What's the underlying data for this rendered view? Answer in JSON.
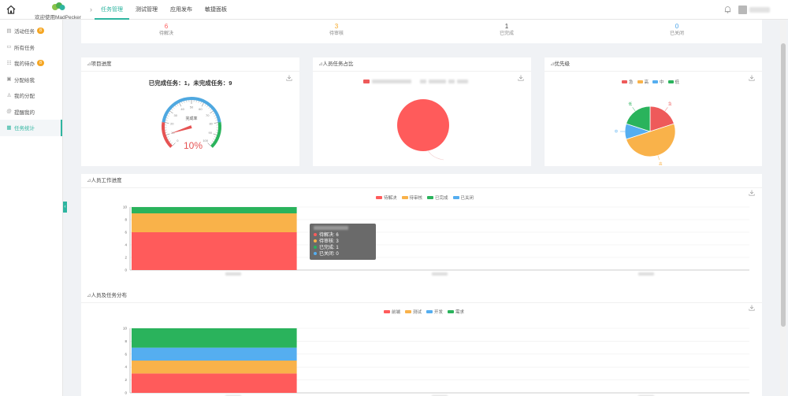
{
  "header": {
    "logo_text": "欢迎使用MadPecker",
    "tabs": [
      {
        "label": "任务管理",
        "active": true
      },
      {
        "label": "测试管理",
        "active": false
      },
      {
        "label": "应用发布",
        "active": false
      },
      {
        "label": "敏捷面板",
        "active": false
      }
    ]
  },
  "sidebar": {
    "items": [
      {
        "label": "活动任务",
        "badge": "8",
        "icon": "clipboard-icon",
        "active": false
      },
      {
        "label": "所有任务",
        "badge": "",
        "icon": "file-icon",
        "active": false
      },
      {
        "label": "我的待办",
        "badge": "8",
        "icon": "todo-icon",
        "active": false
      },
      {
        "label": "分配给我",
        "badge": "",
        "icon": "inbox-icon",
        "active": false
      },
      {
        "label": "我的分配",
        "badge": "",
        "icon": "user-icon",
        "active": false
      },
      {
        "label": "提醒我的",
        "badge": "",
        "icon": "at-icon",
        "active": false
      },
      {
        "label": "任务统计",
        "badge": "",
        "icon": "stats-icon",
        "active": true
      }
    ],
    "collapse_label": "‹"
  },
  "stats": [
    {
      "value": "6",
      "label": "待解决",
      "color": "#ff5b5b"
    },
    {
      "value": "3",
      "label": "待审核",
      "color": "#f5a623"
    },
    {
      "value": "1",
      "label": "已完成",
      "color": "#444444"
    },
    {
      "value": "0",
      "label": "已关闭",
      "color": "#4aa3e8"
    }
  ],
  "cards": {
    "progress": {
      "title": "项目进度",
      "summary": "已完成任务：1，未完成任务：9",
      "gauge_label": "完成率",
      "gauge_value": "10%",
      "gauge_percent": 10,
      "gauge_ticks": [
        "0",
        "10",
        "20",
        "30",
        "40",
        "50",
        "60",
        "70",
        "80",
        "90",
        "100"
      ]
    },
    "member_share": {
      "title": "人员任务占比"
    },
    "priority": {
      "title": "优先级",
      "legend": [
        "急",
        "高",
        "中",
        "低"
      ],
      "labels": [
        "急",
        "高",
        "中",
        "低"
      ]
    },
    "work_progress": {
      "title": "人员工作进度",
      "legend": [
        "待解决",
        "待审核",
        "已完成",
        "已关闭"
      ],
      "tooltip": [
        {
          "label": "待解决: 6"
        },
        {
          "label": "待审核: 3"
        },
        {
          "label": "已完成: 1"
        },
        {
          "label": "已关闭: 0"
        }
      ]
    },
    "distribution": {
      "title": "人员及任务分布",
      "legend": [
        "前端",
        "测试",
        "开发",
        "需求"
      ]
    }
  },
  "chart_data": [
    {
      "type": "gauge",
      "title": "项目进度",
      "label": "完成率",
      "value": 10,
      "min": 0,
      "max": 100
    },
    {
      "type": "pie",
      "title": "人员任务占比",
      "slices": [
        {
          "value": 10,
          "color": "#ff5b5b"
        }
      ]
    },
    {
      "type": "pie",
      "title": "优先级",
      "slices": [
        {
          "name": "急",
          "value": 2,
          "color": "#ee5a5a"
        },
        {
          "name": "高",
          "value": 5,
          "color": "#f9b24a"
        },
        {
          "name": "中",
          "value": 1,
          "color": "#55aef0"
        },
        {
          "name": "低",
          "value": 2,
          "color": "#2ab35c"
        }
      ]
    },
    {
      "type": "bar",
      "stacked": true,
      "title": "人员工作进度",
      "ylim": [
        0,
        10
      ],
      "yticks": [
        0,
        2,
        4,
        6,
        8,
        10
      ],
      "num_categories": 3,
      "series": [
        {
          "name": "待解决",
          "color": "#ff5b5b",
          "values": [
            6,
            0,
            0
          ]
        },
        {
          "name": "待审核",
          "color": "#f9b24a",
          "values": [
            3,
            0,
            0
          ]
        },
        {
          "name": "已完成",
          "color": "#2ab35c",
          "values": [
            1,
            0,
            0
          ]
        },
        {
          "name": "已关闭",
          "color": "#55aef0",
          "values": [
            0,
            0,
            0
          ]
        }
      ]
    },
    {
      "type": "bar",
      "stacked": true,
      "title": "人员及任务分布",
      "ylim": [
        0,
        10
      ],
      "yticks": [
        0,
        2,
        4,
        6,
        8,
        10
      ],
      "num_categories": 3,
      "series": [
        {
          "name": "前端",
          "color": "#ff5b5b",
          "values": [
            3,
            0,
            0
          ]
        },
        {
          "name": "测试",
          "color": "#f9b24a",
          "values": [
            2,
            0,
            0
          ]
        },
        {
          "name": "开发",
          "color": "#55aef0",
          "values": [
            2,
            0,
            0
          ]
        },
        {
          "name": "需求",
          "color": "#2ab35c",
          "values": [
            3,
            0,
            0
          ]
        }
      ]
    }
  ]
}
